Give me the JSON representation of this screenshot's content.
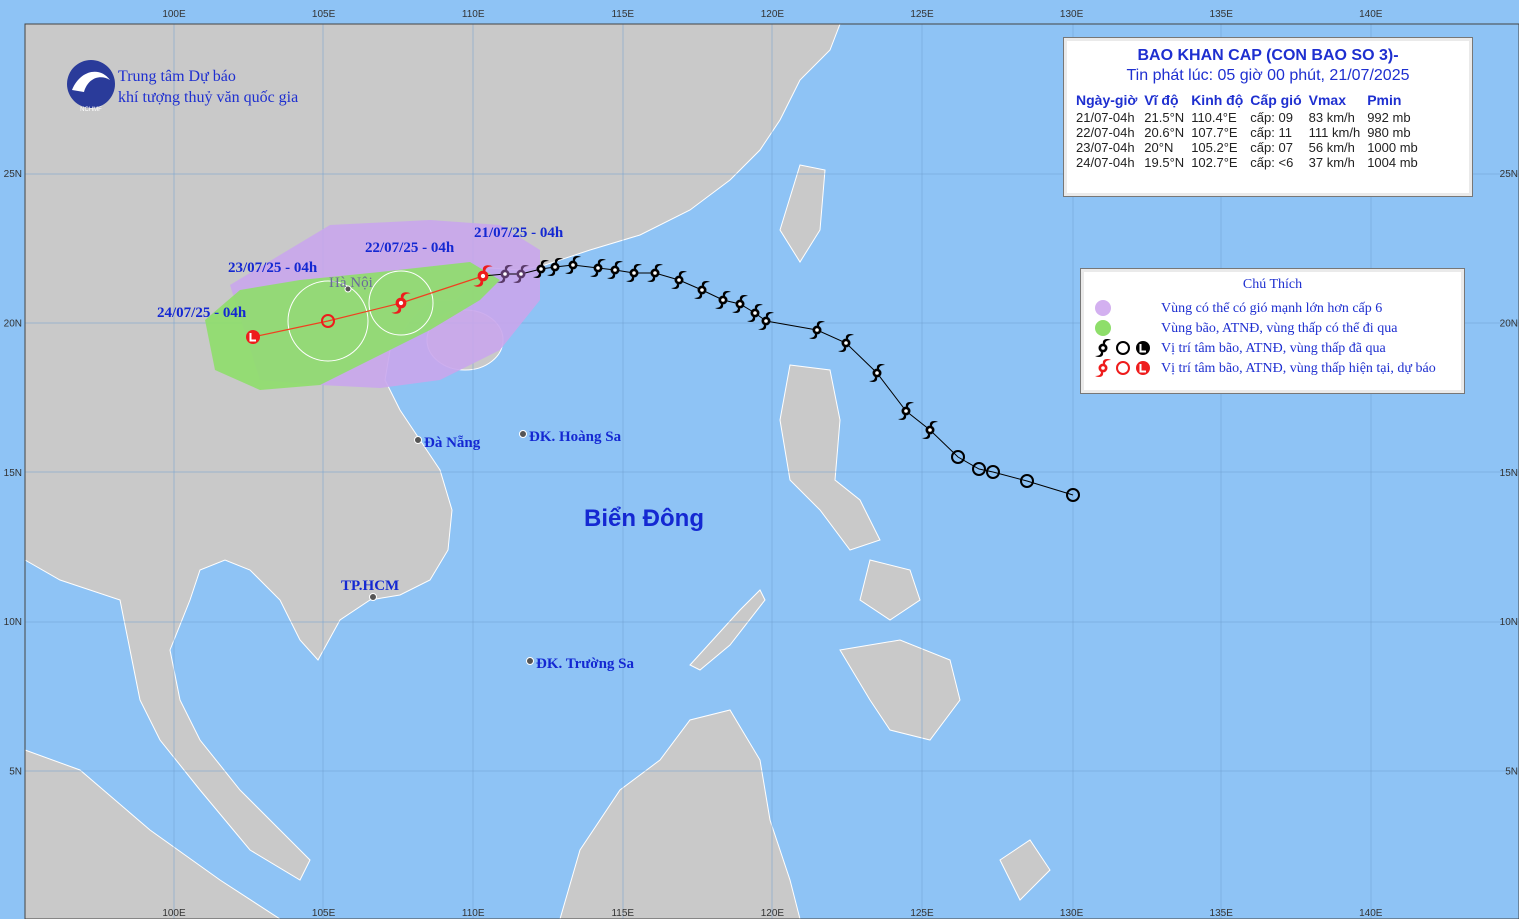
{
  "header": {
    "org_line1": "Trung tâm Dự báo",
    "org_line2": "khí tượng thuỷ văn quốc gia",
    "logo_text": "NCHMF"
  },
  "bulletin": {
    "title": "BAO KHAN CAP (CON BAO SO 3)-",
    "subtitle": "Tin phát lúc: 05 giờ 00 phút, 21/07/2025",
    "columns": [
      "Ngày-giờ",
      "Vĩ độ",
      "Kinh độ",
      "Cấp gió",
      "Vmax",
      "Pmin"
    ],
    "rows": [
      [
        "21/07-04h",
        "21.5°N",
        "110.4°E",
        "cấp: 09",
        "83 km/h",
        "992 mb"
      ],
      [
        "22/07-04h",
        "20.6°N",
        "107.7°E",
        "cấp: 11",
        "111 km/h",
        "980 mb"
      ],
      [
        "23/07-04h",
        "20°N",
        "105.2°E",
        "cấp: 07",
        "56 km/h",
        "1000 mb"
      ],
      [
        "24/07-04h",
        "19.5°N",
        "102.7°E",
        "cấp: <6",
        "37 km/h",
        "1004 mb"
      ]
    ]
  },
  "legend": {
    "title": "Chú Thích",
    "items": [
      "Vùng có thể có gió mạnh lớn hơn cấp 6",
      "Vùng bão, ATNĐ, vùng thấp có thể đi qua",
      "Vị trí tâm bão, ATNĐ, vùng thấp đã qua",
      "Vị trí tâm bão, ATNĐ, vùng thấp hiện tại, dự báo"
    ]
  },
  "map_labels": {
    "forecast_times": [
      "21/07/25 - 04h",
      "22/07/25 - 04h",
      "23/07/25 - 04h",
      "24/07/25 - 04h"
    ],
    "places": [
      "Hà Nội",
      "Đà Nẵng",
      "ĐK. Hoàng Sa",
      "TP.HCM",
      "ĐK. Trường Sa"
    ],
    "sea": "Biển Đông"
  },
  "axes": {
    "lon_labels": [
      "100E",
      "105E",
      "110E",
      "115E",
      "120E",
      "125E",
      "130E",
      "135E",
      "140E"
    ],
    "lat_labels": [
      "25N",
      "20N",
      "15N",
      "10N",
      "5N"
    ]
  }
}
